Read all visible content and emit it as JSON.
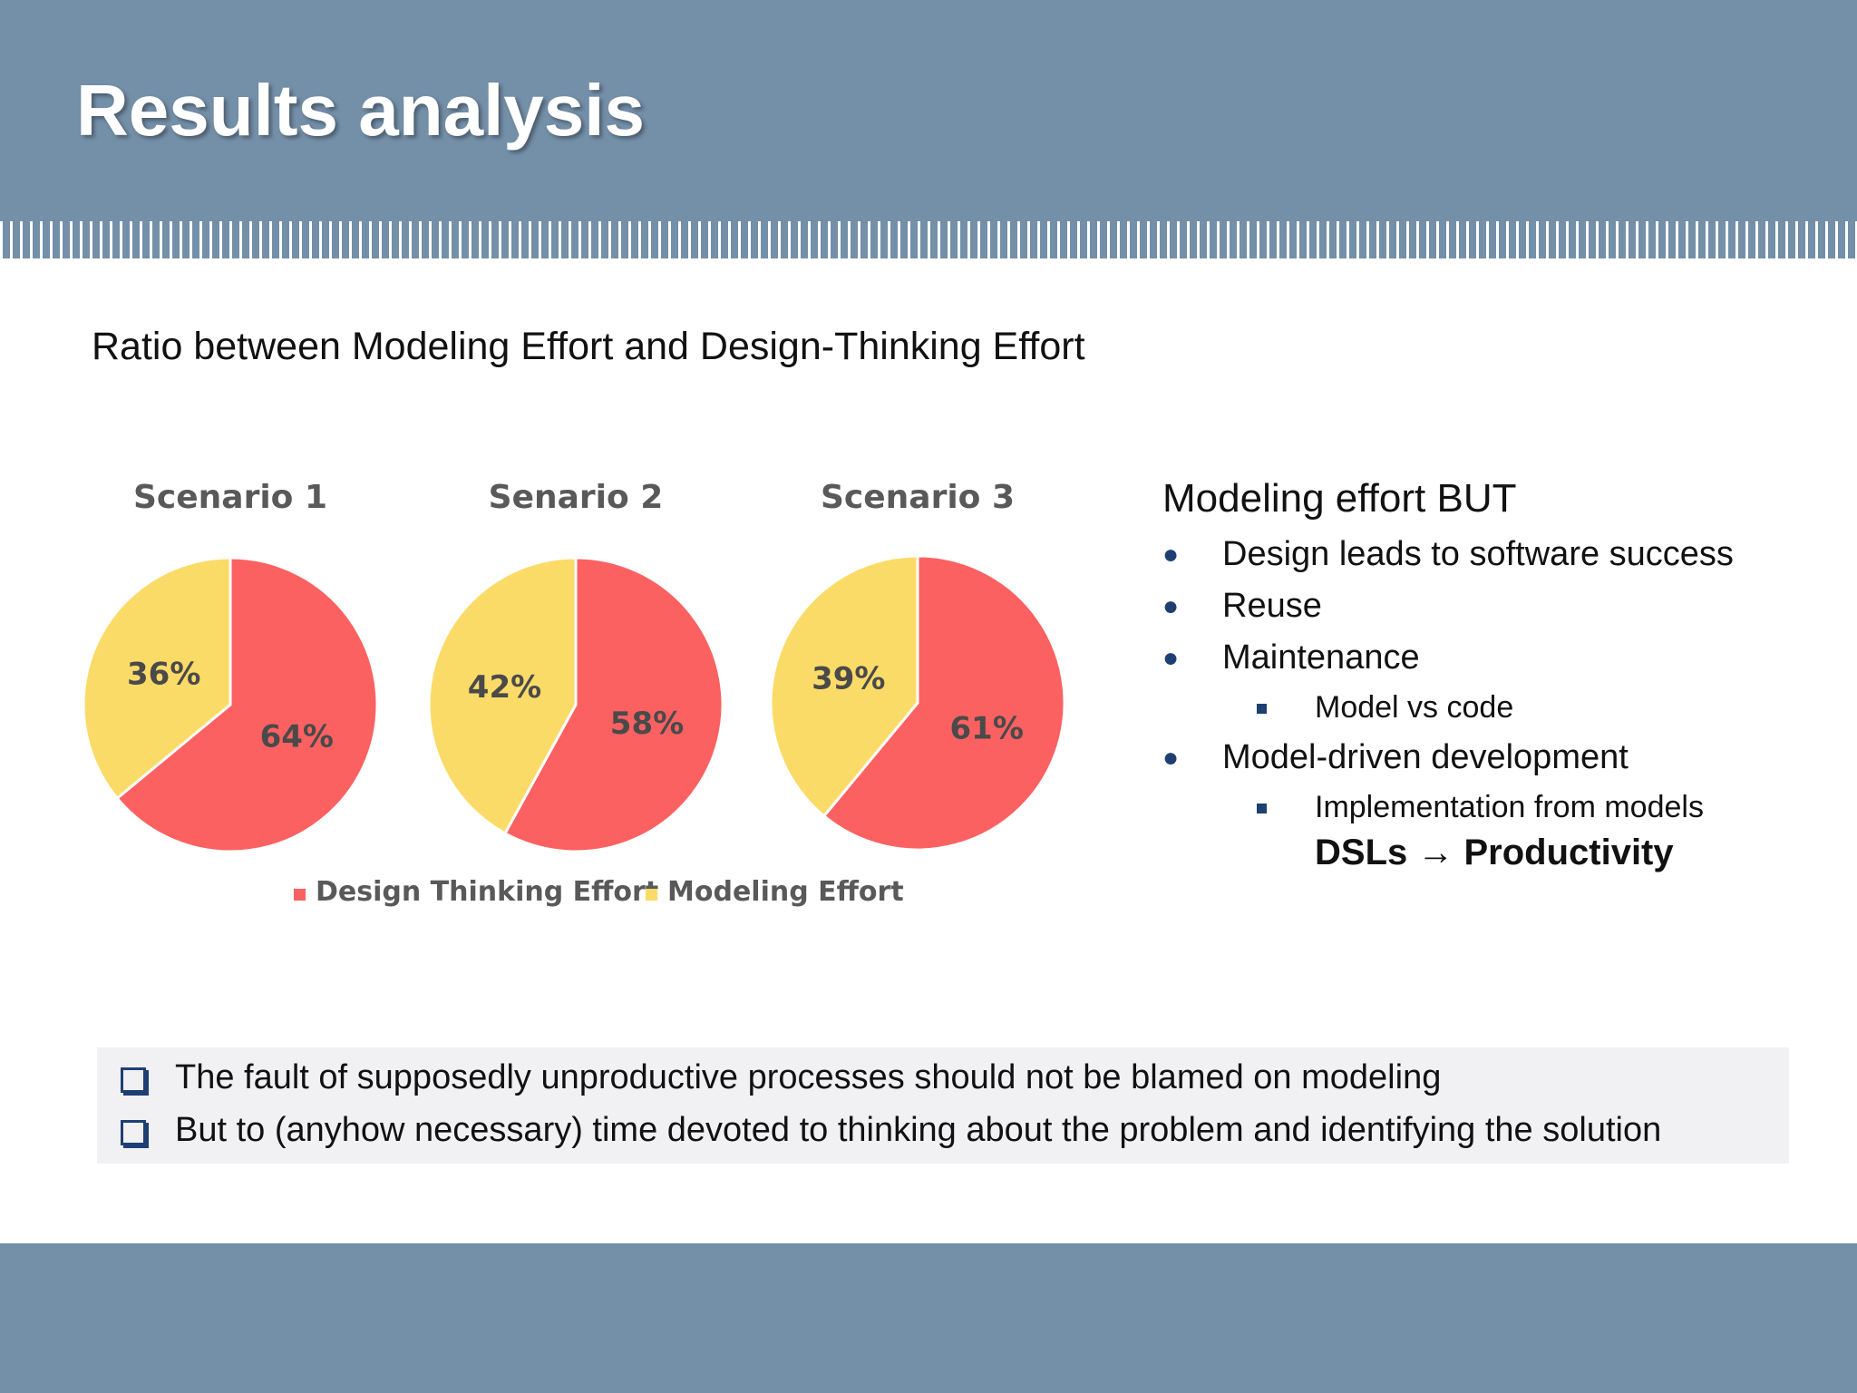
{
  "header": {
    "title": "Results analysis"
  },
  "subtitle": "Ratio between Modeling Effort and Design-Thinking Effort",
  "chart_data": {
    "type": "pie",
    "charts": [
      {
        "title": "Scenario 1",
        "slices": [
          {
            "name": "Design Thinking Effort",
            "value": 64
          },
          {
            "name": "Modeling Effort",
            "value": 36
          }
        ]
      },
      {
        "title": "Senario 2",
        "slices": [
          {
            "name": "Design Thinking Effort",
            "value": 58
          },
          {
            "name": "Modeling Effort",
            "value": 42
          }
        ]
      },
      {
        "title": "Scenario 3",
        "slices": [
          {
            "name": "Design Thinking Effort",
            "value": 61
          },
          {
            "name": "Modeling Effort",
            "value": 39
          }
        ]
      }
    ],
    "legend": {
      "position": "bottom",
      "entries": [
        "Design Thinking Effort",
        "Modeling Effort"
      ]
    },
    "colors": {
      "Design Thinking Effort": "#fc6161",
      "Modeling Effort": "#fbdb68"
    },
    "label_format": "percent"
  },
  "right_panel": {
    "heading": "Modeling effort BUT",
    "bullet_1": "Design leads to software success",
    "bullet_2": "Reuse",
    "bullet_3": "Maintenance",
    "sub_bullet_3": "Model vs code",
    "bullet_4": "Model-driven development",
    "sub_bullet_4": "Implementation from models",
    "highlight": "DSLs → Productivity"
  },
  "notes": {
    "line_1": "The fault of supposedly unproductive processes should not be blamed on modeling",
    "line_2": "But to (anyhow necessary) time devoted to thinking about the problem and identifying the solution"
  },
  "colors": {
    "header_bar": "#748fa8",
    "bullet_accent": "#1f3f73"
  }
}
